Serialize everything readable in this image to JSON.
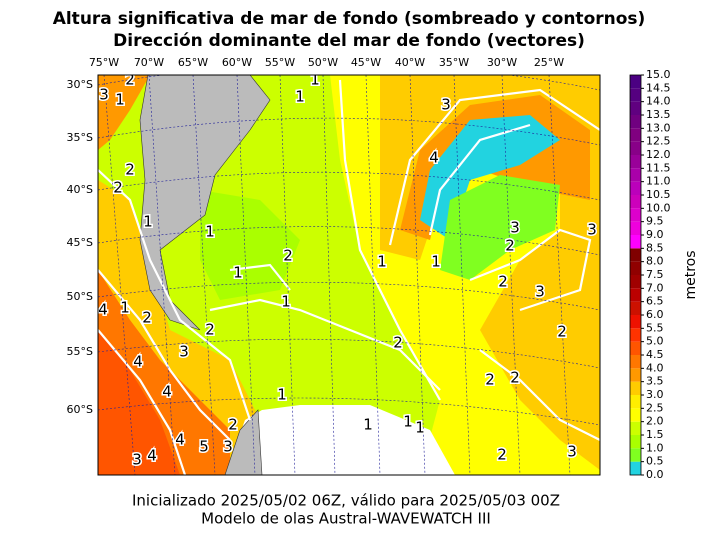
{
  "title": [
    "Altura significativa de mar de fondo (sombreado y contornos)",
    "Dirección dominante del mar de fondo (vectores)"
  ],
  "map": {
    "lon_labels": [
      "75°W",
      "70°W",
      "65°W",
      "60°W",
      "55°W",
      "50°W",
      "45°W",
      "40°W",
      "35°W",
      "30°W",
      "25°W"
    ],
    "lat_labels": [
      "30°S",
      "35°S",
      "40°S",
      "45°S",
      "50°S",
      "55°S",
      "60°S"
    ],
    "contour_labels": [
      "3",
      "1",
      "2",
      "1",
      "1",
      "3",
      "4",
      "2",
      "2",
      "1",
      "1",
      "3",
      "2",
      "3",
      "2",
      "1",
      "1",
      "1",
      "1",
      "2",
      "3",
      "2",
      "1",
      "4",
      "2",
      "3",
      "2",
      "2",
      "4",
      "2",
      "2",
      "4",
      "1",
      "2",
      "5",
      "4",
      "3",
      "1",
      "1",
      "1",
      "3",
      "4",
      "2",
      "3"
    ]
  },
  "colorbar": {
    "label": "metros",
    "ticks": [
      {
        "value": 0,
        "label": "0.0"
      },
      {
        "value": 0.5,
        "label": "0.5"
      },
      {
        "value": 1,
        "label": "1.0"
      },
      {
        "value": 1.5,
        "label": "1.5"
      },
      {
        "value": 2,
        "label": "2.0"
      },
      {
        "value": 2.5,
        "label": "2.5"
      },
      {
        "value": 3,
        "label": "3.0"
      },
      {
        "value": 3.5,
        "label": "3.5"
      },
      {
        "value": 4,
        "label": "4.0"
      },
      {
        "value": 4.5,
        "label": "4.5"
      },
      {
        "value": 5,
        "label": "5.0"
      },
      {
        "value": 5.5,
        "label": "5.5"
      },
      {
        "value": 6,
        "label": "6.0"
      },
      {
        "value": 6.5,
        "label": "6.5"
      },
      {
        "value": 7,
        "label": "7.0"
      },
      {
        "value": 7.5,
        "label": "7.5"
      },
      {
        "value": 8,
        "label": "8.0"
      },
      {
        "value": 8.5,
        "label": "8.5"
      },
      {
        "value": 9,
        "label": "9.0"
      },
      {
        "value": 9.5,
        "label": "9.5"
      },
      {
        "value": 10,
        "label": "10.0"
      },
      {
        "value": 10.5,
        "label": "10.5"
      },
      {
        "value": 11,
        "label": "11.0"
      },
      {
        "value": 11.5,
        "label": "11.5"
      },
      {
        "value": 12,
        "label": "12.0"
      },
      {
        "value": 12.5,
        "label": "12.5"
      },
      {
        "value": 13,
        "label": "13.0"
      },
      {
        "value": 13.5,
        "label": "13.5"
      },
      {
        "value": 14,
        "label": "14.0"
      },
      {
        "value": 14.5,
        "label": "14.5"
      },
      {
        "value": 15,
        "label": "15.0"
      }
    ],
    "colors": [
      "#22d3e0",
      "#80ff20",
      "#aaff00",
      "#ccff00",
      "#ffff00",
      "#ffee00",
      "#ffcc00",
      "#ff9900",
      "#ff7700",
      "#ff5500",
      "#ff3300",
      "#ee1100",
      "#cc1100",
      "#bb0000",
      "#a00000",
      "#900000",
      "#800000",
      "#ff00ff",
      "#ee00dd",
      "#dd00cc",
      "#cc00bb",
      "#bb00bb",
      "#aa00aa",
      "#990099",
      "#880088",
      "#800080",
      "#700080",
      "#600080",
      "#550080",
      "#4b0082"
    ]
  },
  "footer": [
    "Inicializado 2025/05/02 06Z, válido para 2025/05/03 00Z",
    "Modelo de olas Austral-WAVEWATCH III"
  ]
}
